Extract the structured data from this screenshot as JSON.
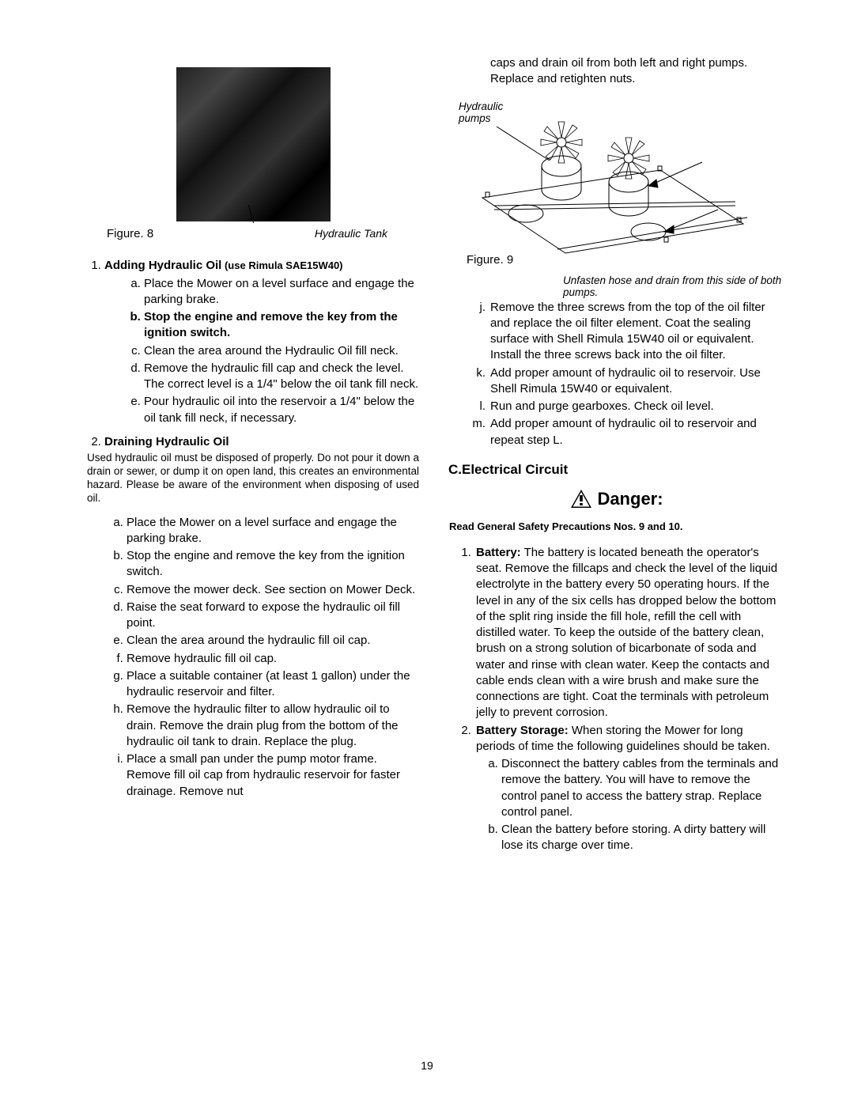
{
  "left": {
    "fig8_label": "Figure. 8",
    "fig8_caption": "Hydraulic Tank",
    "item1_head": "Adding Hydraulic Oil",
    "item1_suffix": " (use Rimula SAE15W40)",
    "item1_steps": [
      {
        "t": "Place the Mower on a level surface and engage the parking brake.",
        "bold": false
      },
      {
        "t": "Stop the engine and remove the key from the ignition switch.",
        "bold": true
      },
      {
        "t": "Clean the area around the Hydraulic Oil fill neck.",
        "bold": false
      },
      {
        "t": "Remove the hydraulic fill cap and check the level. The correct level is a 1/4\" below the oil tank fill neck.",
        "bold": false
      },
      {
        "t": "Pour hydraulic oil into the reservoir a 1/4\" below the oil tank fill neck, if necessary.",
        "bold": false
      }
    ],
    "item2_head": "Draining Hydraulic Oil",
    "drain_note": "Used hydraulic oil must be disposed of properly. Do not pour it down a drain or sewer, or dump it on open land, this creates an environmental hazard. Please be aware of the environment when disposing of used oil.",
    "item2_steps": [
      "Place the Mower on a level surface and engage the parking brake.",
      "Stop the engine and remove the key from the ignition switch.",
      "Remove the mower deck. See section on Mower Deck.",
      "Raise the seat forward to expose the hydraulic oil fill point.",
      "Clean the area around the hydraulic fill oil cap.",
      "Remove hydraulic fill oil cap.",
      "Place a suitable container (at least 1 gallon) under the hydraulic reservoir and filter.",
      "Remove the hydraulic filter to allow hydraulic oil to drain. Remove the drain plug from the bottom of the hydraulic oil tank to drain. Replace the plug.",
      "Place a small pan under the pump motor frame. Remove fill oil cap from hydraulic reservoir for faster drainage. Remove nut"
    ]
  },
  "right": {
    "continuation": "caps and drain oil from both left and right pumps. Replace and retighten nuts.",
    "fig9_top": "Hydraulic\npumps",
    "fig9_label": "Figure. 9",
    "fig9_note": "Unfasten hose and drain from this side of both pumps.",
    "steps_jm": [
      "Remove the three screws from the top of the oil filter and replace the oil filter element. Coat the sealing surface with Shell Rimula 15W40 oil or equivalent. Install the three screws back into the oil filter.",
      "Add proper amount of hydraulic oil to reservoir. Use Shell Rimula 15W40 or equivalent.",
      "Run and purge gearboxes. Check oil level.",
      "Add proper amount of hydraulic oil to reservoir and repeat step L."
    ],
    "section_c": "C.Electrical Circuit",
    "danger": "Danger:",
    "safety": "Read General Safety Precautions Nos. 9 and 10.",
    "battery_lead": "Battery:",
    "battery_text": " The battery is located beneath the operator's seat. Remove the fillcaps and check the level of the liquid electrolyte in the battery every 50 operating hours. If the level in any of the six cells has dropped below the bottom of the split ring inside the fill hole, refill the cell with distilled water. To keep the outside of the battery clean, brush on a strong solution of bicarbonate of soda and water and rinse with clean water. Keep the contacts and cable ends clean with a wire brush and make sure the connections are tight. Coat the terminals with petroleum jelly to prevent corrosion.",
    "storage_lead": "Battery Storage:",
    "storage_text": " When storing the Mower for long periods of time the following guidelines should be taken.",
    "storage_steps": [
      "Disconnect the battery cables from the terminals and remove the battery. You will have to remove the control panel to access the battery strap. Replace control panel.",
      "Clean the battery before storing. A dirty battery will lose its charge over time."
    ]
  },
  "page_number": "19"
}
